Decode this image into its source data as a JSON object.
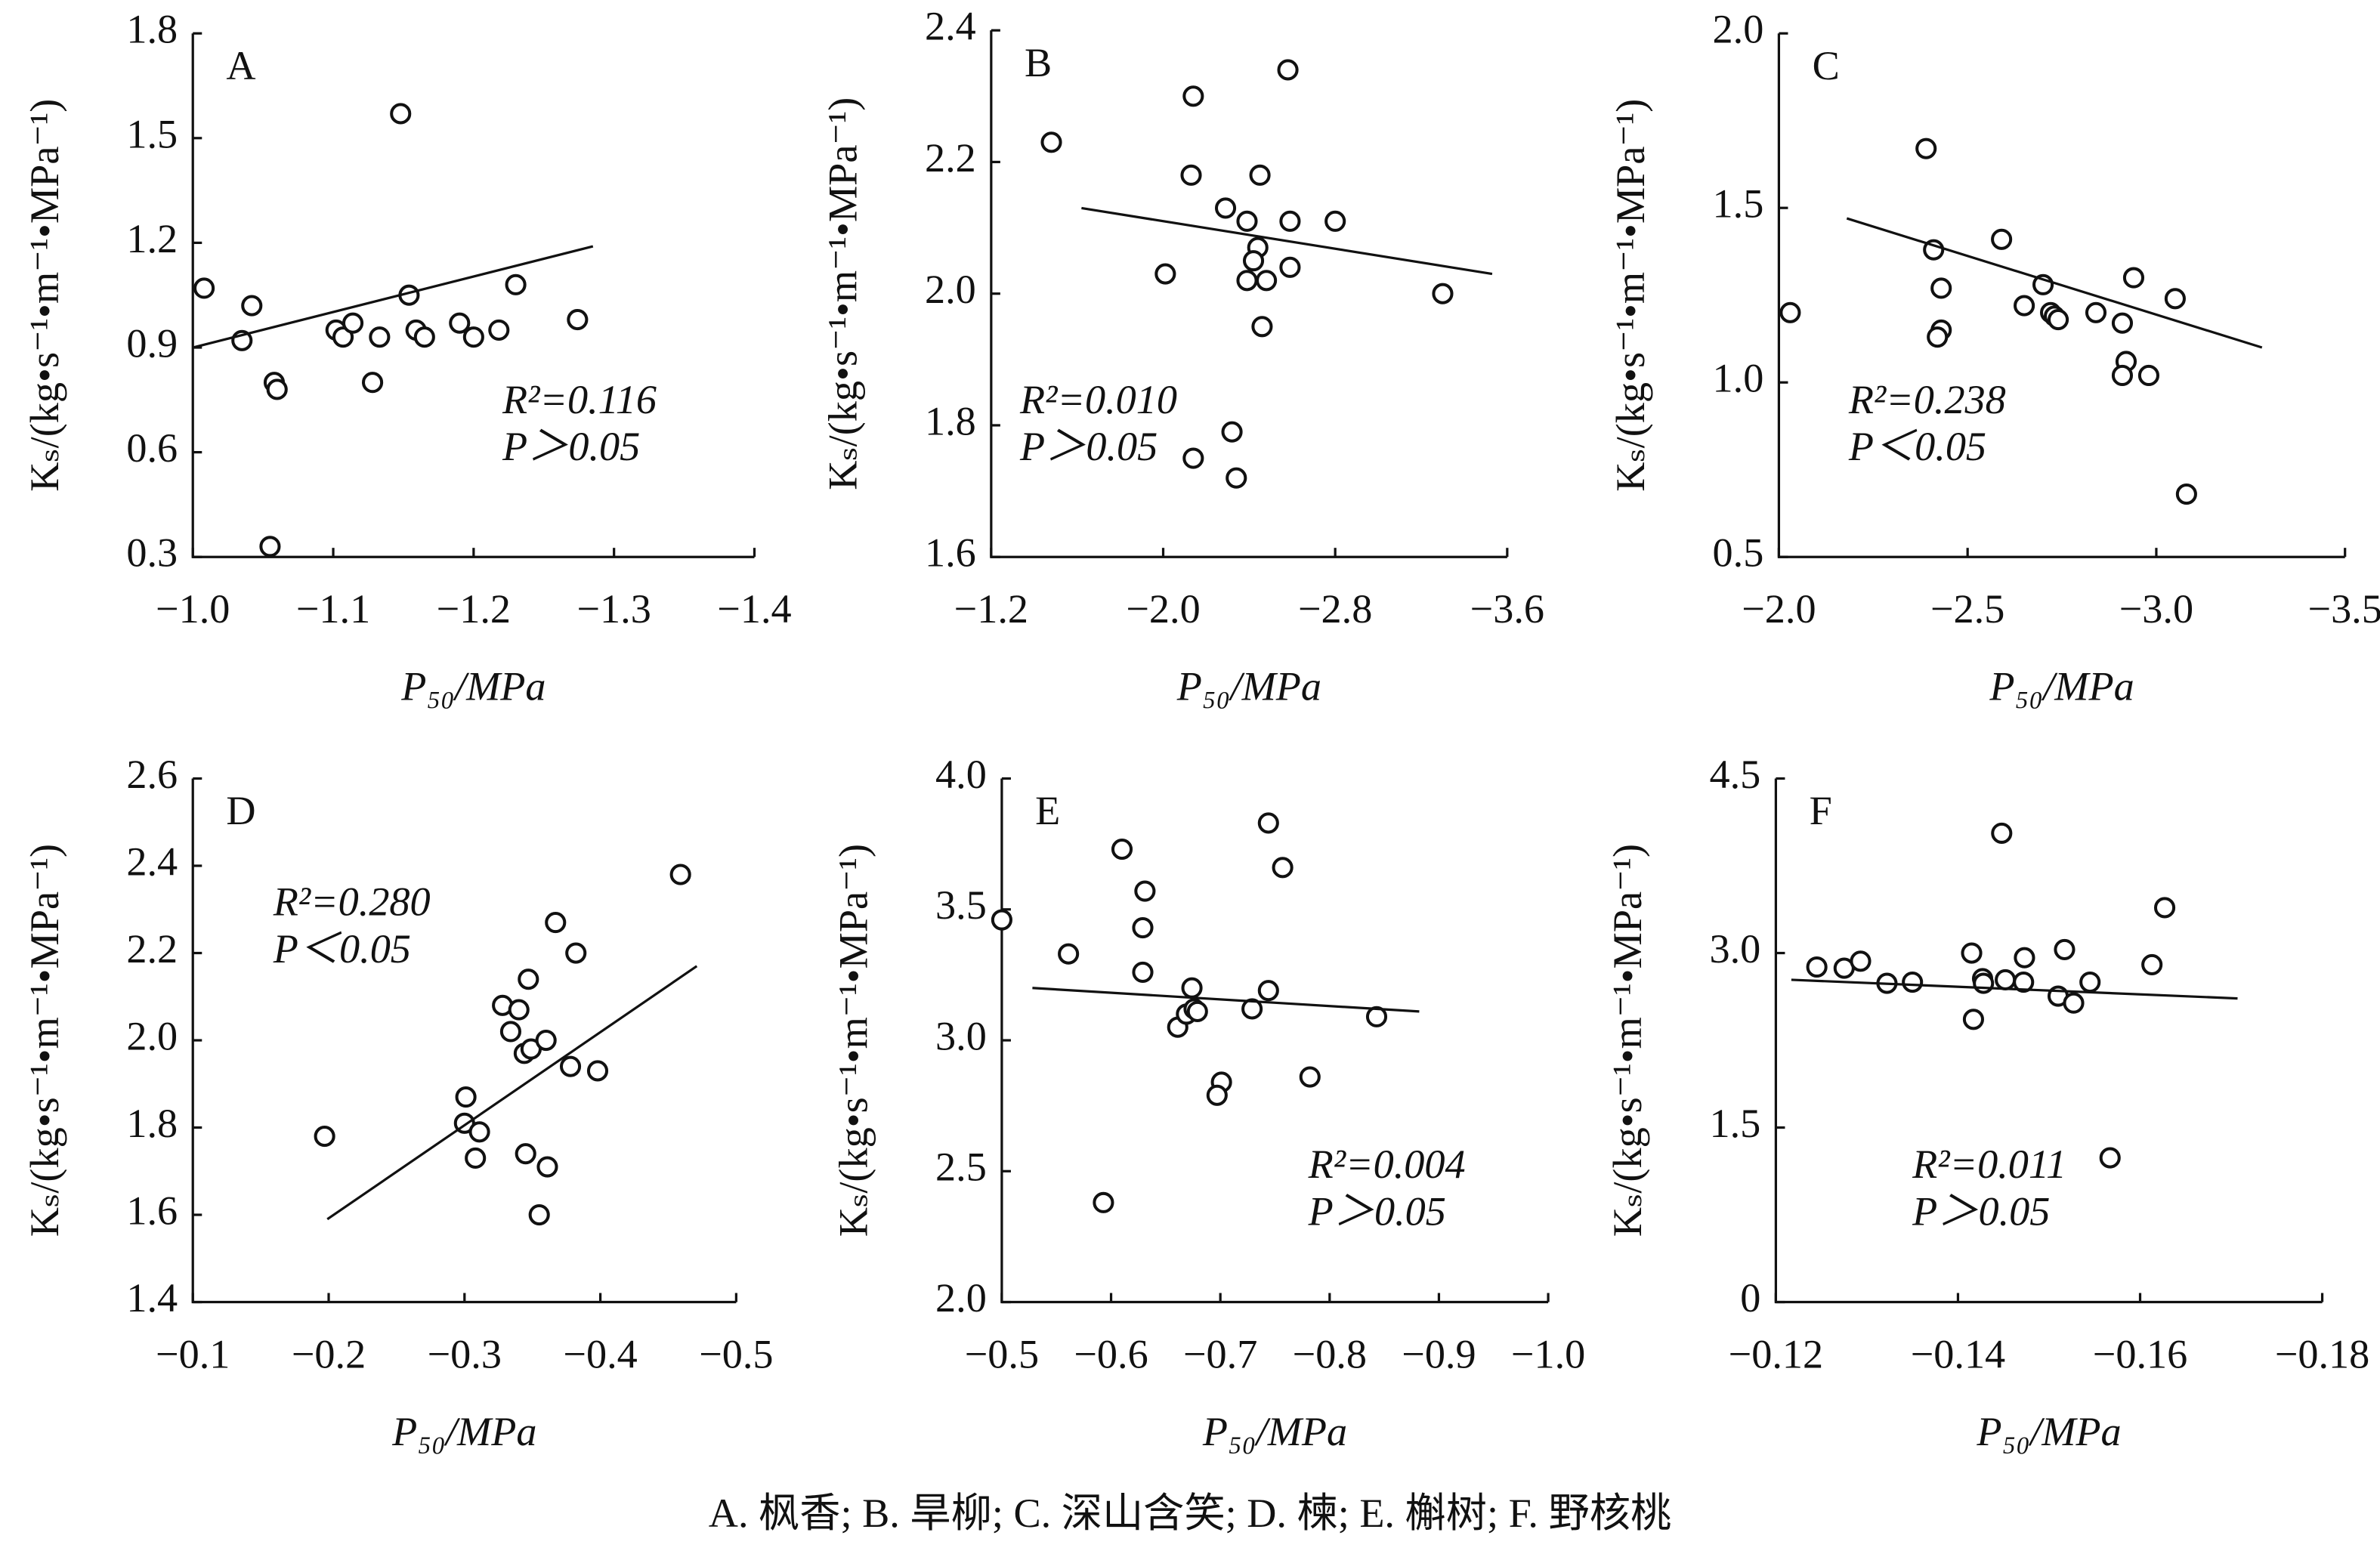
{
  "chart_data": [
    {
      "type": "scatter",
      "label": "A",
      "xlabel": "P₅₀/MPa",
      "ylabel": "Kₛ/(kg•s⁻¹•m⁻¹•MPa⁻¹)",
      "xlim": [
        -1.0,
        -1.4
      ],
      "ylim": [
        0.3,
        1.8
      ],
      "xticks": [
        {
          "value": -1.0,
          "label": "−1.0"
        },
        {
          "value": -1.1,
          "label": "−1.1"
        },
        {
          "value": -1.2,
          "label": "−1.2"
        },
        {
          "value": -1.3,
          "label": "−1.3"
        },
        {
          "value": -1.4,
          "label": "−1.4"
        }
      ],
      "yticks": [
        0.3,
        0.6,
        0.9,
        1.2,
        1.5,
        1.8
      ],
      "x": [
        -1.008,
        -1.042,
        -1.035,
        -1.058,
        -1.06,
        -1.055,
        -1.102,
        -1.107,
        -1.114,
        -1.128,
        -1.133,
        -1.148,
        -1.154,
        -1.159,
        -1.165,
        -1.19,
        -1.2,
        -1.218,
        -1.23,
        -1.274
      ],
      "values": [
        1.07,
        1.02,
        0.92,
        0.8,
        0.78,
        0.33,
        0.95,
        0.93,
        0.97,
        0.8,
        0.93,
        1.57,
        1.05,
        0.95,
        0.93,
        0.97,
        0.93,
        0.95,
        1.08,
        0.98
      ],
      "fit": {
        "x": [
          -1.0,
          -1.285
        ],
        "y": [
          0.9,
          1.19
        ]
      },
      "annotations": [
        "R²=0.116",
        "P＞0.05"
      ]
    },
    {
      "type": "scatter",
      "label": "B",
      "xlabel": "P₅₀/MPa",
      "ylabel": "Kₛ/(kg•s⁻¹•m⁻¹•MPa⁻¹)",
      "xlim": [
        -1.2,
        -3.6
      ],
      "ylim": [
        1.6,
        2.4
      ],
      "xticks": [
        {
          "value": -1.2,
          "label": "−1.2"
        },
        {
          "value": -2.0,
          "label": "−2.0"
        },
        {
          "value": -2.8,
          "label": "−2.8"
        },
        {
          "value": -3.6,
          "label": "−3.6"
        }
      ],
      "yticks": [
        1.6,
        1.8,
        {
          "value": 2,
          "label": "2.0"
        },
        2.2,
        2.4
      ],
      "x": [
        -1.48,
        -2.14,
        -2.13,
        -2.01,
        -2.14,
        -2.29,
        -2.39,
        -2.45,
        -2.44,
        -2.42,
        -2.39,
        -2.48,
        -2.46,
        -2.58,
        -2.59,
        -2.59,
        -2.8,
        -2.32,
        -2.34,
        -3.3
      ],
      "values": [
        2.23,
        2.3,
        2.18,
        2.03,
        1.75,
        2.13,
        2.11,
        2.18,
        2.07,
        2.05,
        2.02,
        2.02,
        1.95,
        2.34,
        2.11,
        2.04,
        2.11,
        1.79,
        1.72,
        2.0
      ],
      "fit": {
        "x": [
          -1.62,
          -3.53
        ],
        "y": [
          2.13,
          2.03
        ]
      },
      "annotations": [
        "R²=0.010",
        "P＞0.05"
      ]
    },
    {
      "type": "scatter",
      "label": "C",
      "xlabel": "P₅₀/MPa",
      "ylabel": "Kₛ/(kg•s⁻¹•m⁻¹•MPa⁻¹)",
      "xlim": [
        -2.0,
        -3.5
      ],
      "ylim": [
        0.5,
        2.0
      ],
      "xticks": [
        {
          "value": -2.0,
          "label": "−2.0"
        },
        {
          "value": -2.5,
          "label": "−2.5"
        },
        {
          "value": -3.0,
          "label": "−3.0"
        },
        {
          "value": -3.5,
          "label": "−3.5"
        }
      ],
      "yticks": [
        0.5,
        {
          "value": 1,
          "label": "1.0"
        },
        1.5,
        {
          "value": 2,
          "label": "2.0"
        }
      ],
      "x": [
        -2.03,
        -2.39,
        -2.41,
        -2.43,
        -2.43,
        -2.42,
        -2.59,
        -2.65,
        -2.7,
        -2.72,
        -2.73,
        -2.74,
        -2.84,
        -2.91,
        -2.92,
        -2.91,
        -2.94,
        -2.98,
        -3.05,
        -3.08
      ],
      "values": [
        1.2,
        1.67,
        1.38,
        1.27,
        1.15,
        1.13,
        1.41,
        1.22,
        1.28,
        1.2,
        1.19,
        1.18,
        1.2,
        1.17,
        1.06,
        1.02,
        1.3,
        1.02,
        1.24,
        0.68
      ],
      "fit": {
        "x": [
          -2.18,
          -3.28
        ],
        "y": [
          1.47,
          1.1
        ]
      },
      "annotations": [
        "R²=0.238",
        "P＜0.05"
      ]
    },
    {
      "type": "scatter",
      "label": "D",
      "xlabel": "P₅₀/MPa",
      "ylabel": "Kₛ/(kg•s⁻¹•m⁻¹•MPa⁻¹)",
      "xlim": [
        -0.1,
        -0.5
      ],
      "ylim": [
        1.4,
        2.6
      ],
      "xticks": [
        {
          "value": -0.1,
          "label": "−0.1"
        },
        {
          "value": -0.2,
          "label": "−0.2"
        },
        {
          "value": -0.3,
          "label": "−0.3"
        },
        {
          "value": -0.4,
          "label": "−0.4"
        },
        {
          "value": -0.5,
          "label": "−0.5"
        }
      ],
      "yticks": [
        1.4,
        1.6,
        1.8,
        {
          "value": 2,
          "label": "2.0"
        },
        2.2,
        2.4,
        2.6
      ],
      "x": [
        -0.197,
        -0.301,
        -0.3,
        -0.308,
        -0.311,
        -0.328,
        -0.334,
        -0.34,
        -0.345,
        -0.344,
        -0.347,
        -0.349,
        -0.355,
        -0.36,
        -0.361,
        -0.367,
        -0.382,
        -0.378,
        -0.398,
        -0.459
      ],
      "values": [
        1.78,
        1.87,
        1.81,
        1.73,
        1.79,
        2.08,
        2.02,
        2.07,
        1.74,
        1.97,
        2.14,
        1.98,
        1.6,
        2.0,
        1.71,
        2.27,
        2.2,
        1.94,
        1.93,
        2.38
      ],
      "fit": {
        "x": [
          -0.199,
          -0.471
        ],
        "y": [
          1.59,
          2.17
        ]
      },
      "annotations": [
        "R²=0.280",
        "P＜0.05"
      ]
    },
    {
      "type": "scatter",
      "label": "E",
      "xlabel": "P₅₀/MPa",
      "ylabel": "Kₛ/(kg•s⁻¹•m⁻¹•MPa⁻¹)",
      "xlim": [
        -0.5,
        -1.0
      ],
      "ylim": [
        2.0,
        4.0
      ],
      "xticks": [
        {
          "value": -0.5,
          "label": "−0.5"
        },
        {
          "value": -0.6,
          "label": "−0.6"
        },
        {
          "value": -0.7,
          "label": "−0.7"
        },
        {
          "value": -0.8,
          "label": "−0.8"
        },
        {
          "value": -0.9,
          "label": "−0.9"
        },
        {
          "value": -1.0,
          "label": "−1.0"
        }
      ],
      "yticks": [
        {
          "value": 2,
          "label": "2.0"
        },
        2.5,
        {
          "value": 3,
          "label": "3.0"
        },
        3.5,
        {
          "value": 4,
          "label": "4.0"
        }
      ],
      "x": [
        -0.5,
        -0.561,
        -0.593,
        -0.61,
        -0.631,
        -0.629,
        -0.629,
        -0.661,
        -0.669,
        -0.674,
        -0.676,
        -0.679,
        -0.701,
        -0.697,
        -0.729,
        -0.744,
        -0.744,
        -0.757,
        -0.782,
        -0.843
      ],
      "values": [
        3.46,
        3.33,
        2.38,
        3.73,
        3.57,
        3.43,
        3.26,
        3.05,
        3.1,
        3.2,
        3.12,
        3.11,
        2.84,
        2.79,
        3.12,
        3.83,
        3.19,
        3.66,
        2.86,
        3.09
      ],
      "fit": {
        "x": [
          -0.528,
          -0.882
        ],
        "y": [
          3.2,
          3.11
        ]
      },
      "annotations": [
        "R²=0.004",
        "P＞0.05"
      ]
    },
    {
      "type": "scatter",
      "label": "F",
      "xlabel": "P₅₀/MPa",
      "ylabel": "Kₛ/(kg•s⁻¹•m⁻¹•MPa⁻¹)",
      "xlim": [
        -0.12,
        -0.18
      ],
      "ylim": [
        0,
        4.5
      ],
      "xticks": [
        {
          "value": -0.12,
          "label": "−0.12"
        },
        {
          "value": -0.14,
          "label": "−0.14"
        },
        {
          "value": -0.16,
          "label": "−0.16"
        },
        {
          "value": -0.18,
          "label": "−0.18"
        }
      ],
      "yticks": [
        0,
        1.5,
        {
          "value": 3,
          "label": "3.0"
        },
        4.5
      ],
      "x": [
        -0.1245,
        -0.1275,
        -0.1293,
        -0.1322,
        -0.135,
        -0.1415,
        -0.1417,
        -0.1427,
        -0.1428,
        -0.1448,
        -0.1452,
        -0.1472,
        -0.1473,
        -0.151,
        -0.1517,
        -0.1527,
        -0.1545,
        -0.1567,
        -0.1613,
        -0.1627
      ],
      "values": [
        2.88,
        2.87,
        2.93,
        2.74,
        2.75,
        3.0,
        2.43,
        2.78,
        2.74,
        4.03,
        2.77,
        2.75,
        2.96,
        2.63,
        3.03,
        2.57,
        2.75,
        1.24,
        2.9,
        3.39
      ],
      "fit": {
        "x": [
          -0.1217,
          -0.1707
        ],
        "y": [
          2.77,
          2.61
        ]
      },
      "annotations": [
        "R²=0.011",
        "P＞0.05"
      ]
    }
  ],
  "caption": "A. 枫香; B. 旱柳; C. 深山含笑; D. 楝; E. 槲树; F. 野核桃"
}
